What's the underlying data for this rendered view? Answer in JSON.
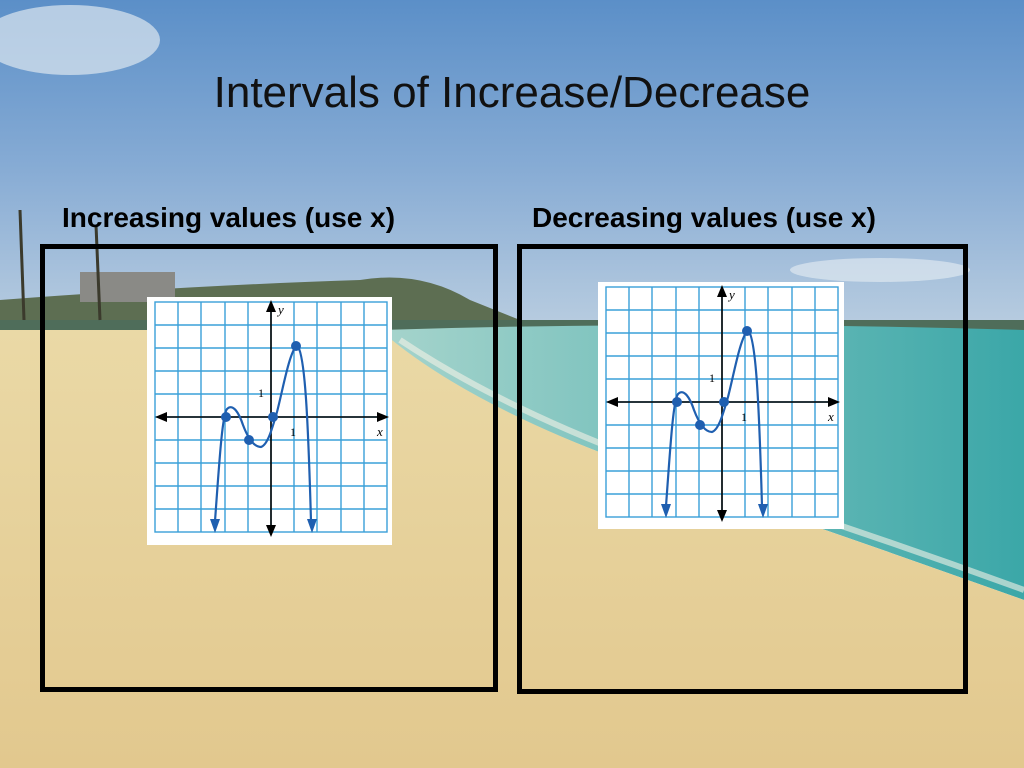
{
  "slide": {
    "title": "Intervals of Increase/Decrease"
  },
  "columns": {
    "left_label": "Increasing values (use x)",
    "right_label": "Decreasing values (use x)"
  },
  "graph": {
    "x_axis_label": "x",
    "y_axis_label": "y",
    "x_tick_label": "1",
    "y_tick_label": "1"
  },
  "colors": {
    "grid": "#3aa0d8",
    "curve": "#1f5fb0",
    "frame": "#000000",
    "title": "#111111"
  }
}
